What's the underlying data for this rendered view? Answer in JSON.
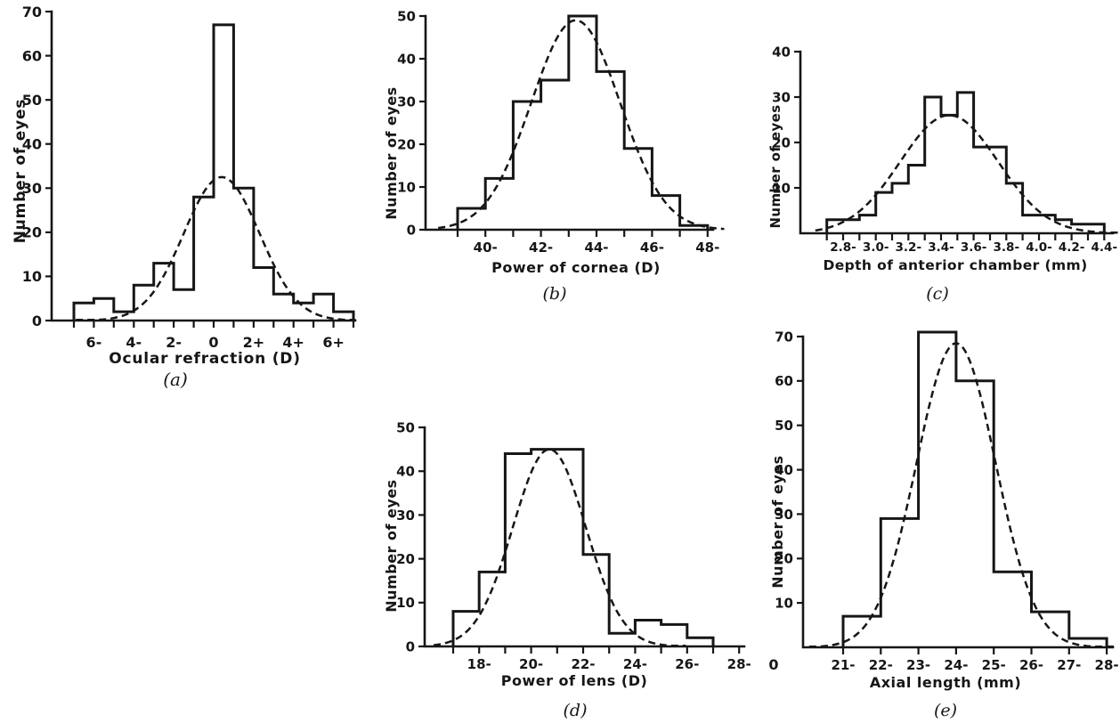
{
  "page": {
    "background": "#ffffff",
    "ink": "#161616",
    "description": "Five histograms with dashed normal curves: distribution of ocular components"
  },
  "chart_data": [
    {
      "id": "a",
      "type": "bar",
      "caption": "(a)",
      "legend": "none",
      "grid": false,
      "y_axis": {
        "label": "Number of eyes",
        "ticks": [
          0,
          10,
          20,
          30,
          40,
          50,
          60,
          70
        ],
        "max": 70,
        "ylim": [
          0,
          70
        ]
      },
      "x_axis": {
        "label": "Ocular refraction (D)",
        "ticks": [
          -7,
          -6,
          -5,
          -4,
          -3,
          -2,
          -1,
          0,
          1,
          2,
          3,
          4,
          5,
          6,
          7
        ],
        "tick_labels": [
          {
            "at": -6,
            "text": "6-"
          },
          {
            "at": -4,
            "text": "4-"
          },
          {
            "at": -2,
            "text": "2-"
          },
          {
            "at": 0,
            "text": "0"
          },
          {
            "at": 2,
            "text": "2+"
          },
          {
            "at": 4,
            "text": "4+"
          },
          {
            "at": 6,
            "text": "6+"
          }
        ]
      },
      "bars": {
        "start": -7,
        "bin_width": 1,
        "counts": [
          4,
          5,
          2,
          8,
          13,
          7,
          28,
          67,
          30,
          12,
          6,
          4,
          6,
          2
        ]
      },
      "curve": {
        "shape": "normal",
        "style": "dashed",
        "peak": 32.5,
        "center": 0.4,
        "spread": 1.9,
        "from": -6.9,
        "to": 7.1
      }
    },
    {
      "id": "b",
      "type": "bar",
      "caption": "(b)",
      "legend": "none",
      "grid": false,
      "y_axis": {
        "label": "Number of eyes",
        "ticks": [
          0,
          10,
          20,
          30,
          40,
          50
        ],
        "max": 50,
        "ylim": [
          0,
          50
        ]
      },
      "x_axis": {
        "label": "Power of cornea (D)",
        "ticks": [
          39,
          40,
          41,
          42,
          43,
          44,
          45,
          46,
          47,
          48
        ],
        "tick_labels": [
          {
            "at": 40,
            "text": "40-"
          },
          {
            "at": 42,
            "text": "42-"
          },
          {
            "at": 44,
            "text": "44-"
          },
          {
            "at": 46,
            "text": "46-"
          },
          {
            "at": 48,
            "text": "48-"
          }
        ]
      },
      "bars": {
        "start": 39,
        "bin_width": 1,
        "counts": [
          5,
          12,
          30,
          35,
          50,
          37,
          19,
          8,
          1
        ]
      },
      "curve": {
        "shape": "normal",
        "style": "dashed",
        "peak": 49,
        "center": 43.25,
        "spread": 1.6,
        "from": 38.3,
        "to": 48.6
      }
    },
    {
      "id": "c",
      "type": "bar",
      "caption": "(c)",
      "legend": "none",
      "grid": false,
      "y_axis": {
        "label": "Number of eyes",
        "ticks": [
          10,
          20,
          30,
          40
        ],
        "max": 40,
        "ylim": [
          0,
          40
        ]
      },
      "x_axis": {
        "label": "Depth of anterior chamber (mm)",
        "ticks": [
          2.7,
          2.8,
          2.9,
          3.0,
          3.1,
          3.2,
          3.3,
          3.4,
          3.5,
          3.6,
          3.7,
          3.8,
          3.9,
          4.0,
          4.1,
          4.2,
          4.3,
          4.4
        ],
        "tick_labels": [
          {
            "at": 2.8,
            "text": "2.8-"
          },
          {
            "at": 3.0,
            "text": "3.0-"
          },
          {
            "at": 3.2,
            "text": "3.2-"
          },
          {
            "at": 3.4,
            "text": "3.4-"
          },
          {
            "at": 3.6,
            "text": "3.6-"
          },
          {
            "at": 3.8,
            "text": "3.8-"
          },
          {
            "at": 4.0,
            "text": "4.0-"
          },
          {
            "at": 4.2,
            "text": "4.2-"
          },
          {
            "at": 4.4,
            "text": "4.4-"
          }
        ]
      },
      "bars": {
        "start": 2.7,
        "bin_width": 0.1,
        "counts": [
          3,
          3,
          4,
          9,
          11,
          15,
          30,
          26,
          31,
          19,
          19,
          11,
          4,
          4,
          3,
          2,
          2
        ]
      },
      "curve": {
        "shape": "normal",
        "style": "dashed",
        "peak": 26,
        "center": 3.45,
        "spread": 0.3,
        "from": 2.63,
        "to": 4.5
      }
    },
    {
      "id": "d",
      "type": "bar",
      "caption": "(d)",
      "legend": "none",
      "grid": false,
      "y_axis": {
        "label": "Number of eyes",
        "ticks": [
          0,
          10,
          20,
          30,
          40,
          50
        ],
        "max": 50,
        "ylim": [
          0,
          50
        ]
      },
      "x_axis": {
        "label": "Power of lens (D)",
        "ticks": [
          17,
          18,
          19,
          20,
          21,
          22,
          23,
          24,
          25,
          26,
          27,
          28
        ],
        "tick_labels": [
          {
            "at": 18,
            "text": "18-"
          },
          {
            "at": 20,
            "text": "20-"
          },
          {
            "at": 22,
            "text": "22-"
          },
          {
            "at": 24,
            "text": "24-"
          },
          {
            "at": 26,
            "text": "26-"
          },
          {
            "at": 28,
            "text": "28-"
          }
        ]
      },
      "bars": {
        "start": 17,
        "bin_width": 1,
        "counts": [
          8,
          17,
          44,
          45,
          45,
          21,
          3,
          6,
          5,
          2
        ]
      },
      "curve": {
        "shape": "normal",
        "style": "dashed",
        "peak": 45,
        "center": 20.7,
        "spread": 1.4,
        "from": 16.25,
        "to": 25.95
      }
    },
    {
      "id": "e",
      "type": "bar",
      "caption": "(e)",
      "legend": "none",
      "grid": false,
      "y_axis": {
        "label": "Number of eyes",
        "ticks": [
          10,
          20,
          30,
          40,
          50,
          60,
          70
        ],
        "max": 70,
        "ylim": [
          0,
          70
        ]
      },
      "x_axis": {
        "label": "Axial length (mm)",
        "origin_label": "0",
        "ticks": [
          21,
          22,
          23,
          24,
          25,
          26,
          27,
          28
        ],
        "tick_labels": [
          {
            "at": 21,
            "text": "21-"
          },
          {
            "at": 22,
            "text": "22-"
          },
          {
            "at": 23,
            "text": "23-"
          },
          {
            "at": 24,
            "text": "24-"
          },
          {
            "at": 25,
            "text": "25-"
          },
          {
            "at": 26,
            "text": "26-"
          },
          {
            "at": 27,
            "text": "27-"
          },
          {
            "at": 28,
            "text": "28-"
          }
        ]
      },
      "bars": {
        "start": 21,
        "bin_width": 1,
        "counts": [
          7,
          29,
          71,
          60,
          17,
          8,
          2
        ]
      },
      "curve": {
        "shape": "normal",
        "style": "dashed",
        "peak": 68.5,
        "center": 24.0,
        "spread": 1.05,
        "from": 20.1,
        "to": 28.3
      }
    }
  ]
}
